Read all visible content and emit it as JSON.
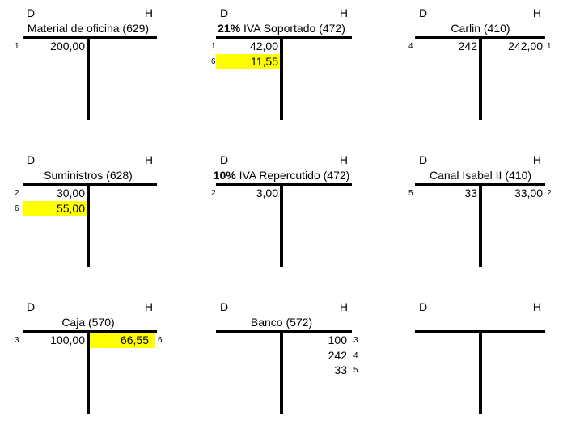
{
  "sheet": {
    "background_color": "#FFFFFF",
    "line_color": "#000000",
    "highlight_color": "#FFFF00",
    "debit_label": "D",
    "credit_label": "H"
  },
  "accounts": [
    {
      "title_bold": "",
      "title_rest": "Material de oficina (629)",
      "debit": [
        {
          "num": "1",
          "value": "200,00",
          "highlight": false
        }
      ],
      "credit": []
    },
    {
      "title_bold": "21%",
      "title_rest": " IVA Soportado (472)",
      "debit": [
        {
          "num": "1",
          "value": "42,00",
          "highlight": false
        },
        {
          "num": "6",
          "value": "11,55",
          "highlight": true
        }
      ],
      "credit": []
    },
    {
      "title_bold": "",
      "title_rest": "Carlin (410)",
      "debit": [
        {
          "num": "4",
          "value": "242",
          "highlight": false
        }
      ],
      "credit": [
        {
          "num": "1",
          "value": "242,00",
          "highlight": false
        }
      ]
    },
    {
      "title_bold": "",
      "title_rest": "Suministros (628)",
      "debit": [
        {
          "num": "2",
          "value": "30,00",
          "highlight": false
        },
        {
          "num": "6",
          "value": "55,00",
          "highlight": true
        }
      ],
      "credit": []
    },
    {
      "title_bold": "10%",
      "title_rest": " IVA Repercutido (472)",
      "debit": [
        {
          "num": "2",
          "value": "3,00",
          "highlight": false
        }
      ],
      "credit": []
    },
    {
      "title_bold": "",
      "title_rest": "Canal Isabel II (410)",
      "debit": [
        {
          "num": "5",
          "value": "33",
          "highlight": false
        }
      ],
      "credit": [
        {
          "num": "2",
          "value": "33,00",
          "highlight": false
        }
      ]
    },
    {
      "title_bold": "",
      "title_rest": "Caja (570)",
      "debit": [
        {
          "num": "3",
          "value": "100,00",
          "highlight": false
        }
      ],
      "credit": [
        {
          "num": "6",
          "value": "66,55",
          "highlight": true
        }
      ]
    },
    {
      "title_bold": "",
      "title_rest": "Banco (572)",
      "debit": [],
      "credit": [
        {
          "num": "3",
          "value": "100",
          "highlight": false
        },
        {
          "num": "4",
          "value": "242",
          "highlight": false
        },
        {
          "num": "5",
          "value": "33",
          "highlight": false
        }
      ]
    },
    {
      "title_bold": "",
      "title_rest": "",
      "debit": [],
      "credit": []
    }
  ]
}
